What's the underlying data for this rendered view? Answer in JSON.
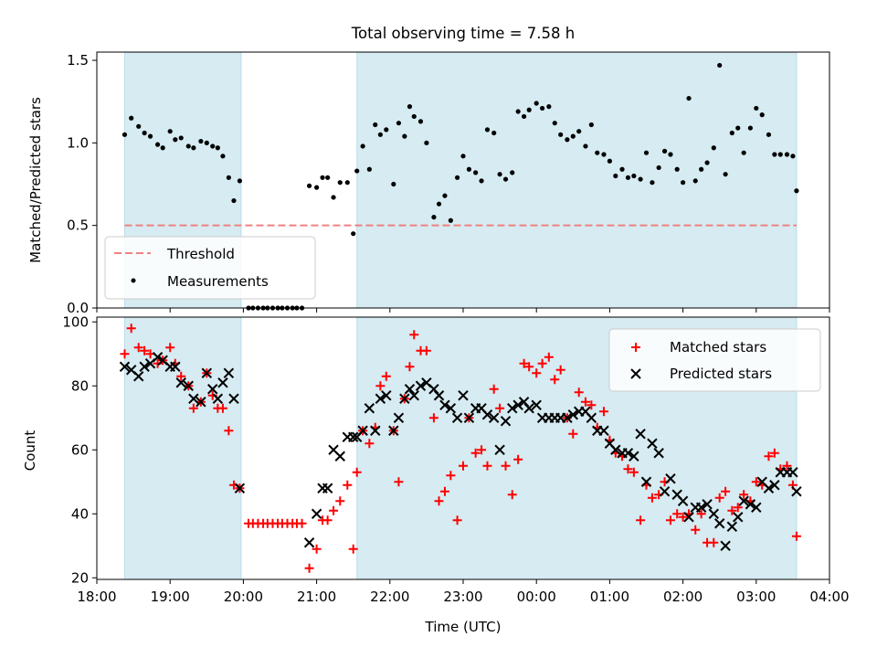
{
  "figure_title": "Total observing time = 7.58 h",
  "chart_data": [
    {
      "type": "scatter",
      "panel": "top",
      "ylabel": "Matched/Predicted stars",
      "ylim": [
        0,
        1.55
      ],
      "yticks": [
        0.0,
        0.5,
        1.0,
        1.5
      ],
      "ytick_labels": [
        "0.0",
        "0.5",
        "1.0",
        "1.5"
      ],
      "xlim_hours": [
        18,
        28
      ],
      "shaded_spans_hours": [
        [
          18.38,
          19.97
        ],
        [
          21.55,
          27.55
        ]
      ],
      "legend_position": "lower-left",
      "threshold": {
        "name": "Threshold",
        "value": 0.5,
        "color": "#f08080"
      },
      "measurements": {
        "name": "Measurements",
        "color": "#000000",
        "x": [
          18.38,
          18.47,
          18.57,
          18.65,
          18.73,
          18.83,
          18.9,
          19.0,
          19.07,
          19.15,
          19.25,
          19.32,
          19.42,
          19.5,
          19.58,
          19.65,
          19.72,
          19.8,
          19.87,
          19.95,
          20.07,
          20.13,
          20.2,
          20.27,
          20.33,
          20.4,
          20.47,
          20.53,
          20.6,
          20.67,
          20.73,
          20.8,
          20.9,
          21.0,
          21.08,
          21.15,
          21.23,
          21.32,
          21.42,
          21.5,
          21.55,
          21.63,
          21.72,
          21.8,
          21.87,
          21.95,
          22.05,
          22.12,
          22.2,
          22.27,
          22.33,
          22.42,
          22.5,
          22.6,
          22.67,
          22.75,
          22.83,
          22.92,
          23.0,
          23.08,
          23.17,
          23.25,
          23.33,
          23.42,
          23.5,
          23.58,
          23.67,
          23.75,
          23.83,
          23.9,
          24.0,
          24.08,
          24.17,
          24.25,
          24.33,
          24.42,
          24.5,
          24.58,
          24.67,
          24.75,
          24.83,
          24.92,
          25.0,
          25.08,
          25.17,
          25.25,
          25.33,
          25.42,
          25.5,
          25.58,
          25.67,
          25.75,
          25.83,
          25.92,
          26.0,
          26.08,
          26.17,
          26.25,
          26.33,
          26.42,
          26.5,
          26.58,
          26.67,
          26.75,
          26.83,
          26.92,
          27.0,
          27.08,
          27.17,
          27.25,
          27.33,
          27.42,
          27.5,
          27.55
        ],
        "y": [
          1.05,
          1.15,
          1.1,
          1.06,
          1.04,
          0.99,
          0.97,
          1.07,
          1.02,
          1.03,
          0.98,
          0.97,
          1.01,
          1.0,
          0.98,
          0.97,
          0.92,
          0.79,
          0.65,
          0.77,
          0.0,
          0.0,
          0.0,
          0.0,
          0.0,
          0.0,
          0.0,
          0.0,
          0.0,
          0.0,
          0.0,
          0.0,
          0.74,
          0.73,
          0.79,
          0.79,
          0.67,
          0.76,
          0.76,
          0.45,
          0.83,
          0.98,
          0.84,
          1.11,
          1.05,
          1.08,
          0.75,
          1.12,
          1.04,
          1.22,
          1.16,
          1.13,
          1.0,
          0.55,
          0.63,
          0.68,
          0.53,
          0.79,
          0.92,
          0.84,
          0.82,
          0.77,
          1.08,
          1.06,
          0.81,
          0.78,
          0.82,
          1.19,
          1.16,
          1.2,
          1.24,
          1.21,
          1.22,
          1.12,
          1.05,
          1.02,
          1.04,
          1.07,
          0.98,
          1.11,
          0.94,
          0.93,
          0.89,
          0.8,
          0.84,
          0.79,
          0.8,
          0.78,
          0.94,
          0.76,
          0.85,
          0.95,
          0.93,
          0.84,
          0.76,
          1.27,
          0.77,
          0.84,
          0.88,
          0.97,
          1.47,
          0.81,
          1.06,
          1.09,
          0.94,
          1.09,
          1.21,
          1.17,
          1.05,
          0.93,
          0.93,
          0.93,
          0.92,
          0.71
        ]
      }
    },
    {
      "type": "scatter",
      "panel": "bottom",
      "xlabel": "Time (UTC)",
      "ylabel": "Count",
      "ylim": [
        19.5,
        101.5
      ],
      "yticks": [
        20,
        40,
        60,
        80,
        100
      ],
      "ytick_labels": [
        "20",
        "40",
        "60",
        "80",
        "100"
      ],
      "xlim_hours": [
        18,
        28
      ],
      "xticks_hours": [
        18,
        19,
        20,
        21,
        22,
        23,
        24,
        25,
        26,
        27,
        28
      ],
      "xtick_labels": [
        "18:00",
        "19:00",
        "20:00",
        "21:00",
        "22:00",
        "23:00",
        "00:00",
        "01:00",
        "02:00",
        "03:00",
        "04:00"
      ],
      "shaded_spans_hours": [
        [
          18.38,
          19.97
        ],
        [
          21.55,
          27.55
        ]
      ],
      "legend_position": "top-right",
      "series": [
        {
          "name": "Matched stars",
          "marker": "plus",
          "color": "#ff0000",
          "x": [
            18.38,
            18.47,
            18.57,
            18.65,
            18.73,
            18.83,
            18.9,
            19.0,
            19.07,
            19.15,
            19.25,
            19.32,
            19.42,
            19.5,
            19.58,
            19.65,
            19.72,
            19.8,
            19.87,
            19.95,
            20.07,
            20.13,
            20.2,
            20.27,
            20.33,
            20.4,
            20.47,
            20.53,
            20.6,
            20.67,
            20.73,
            20.8,
            20.9,
            21.0,
            21.08,
            21.15,
            21.23,
            21.32,
            21.42,
            21.5,
            21.55,
            21.63,
            21.72,
            21.8,
            21.87,
            21.95,
            22.05,
            22.12,
            22.2,
            22.27,
            22.33,
            22.42,
            22.5,
            22.6,
            22.67,
            22.75,
            22.83,
            22.92,
            23.0,
            23.08,
            23.17,
            23.25,
            23.33,
            23.42,
            23.5,
            23.58,
            23.67,
            23.75,
            23.83,
            23.9,
            24.0,
            24.08,
            24.17,
            24.25,
            24.33,
            24.42,
            24.5,
            24.58,
            24.67,
            24.75,
            24.83,
            24.92,
            25.0,
            25.08,
            25.17,
            25.25,
            25.33,
            25.42,
            25.5,
            25.58,
            25.67,
            25.75,
            25.83,
            25.92,
            26.0,
            26.08,
            26.17,
            26.25,
            26.33,
            26.42,
            26.5,
            26.58,
            26.67,
            26.75,
            26.83,
            26.92,
            27.0,
            27.08,
            27.17,
            27.25,
            27.33,
            27.42,
            27.5,
            27.55
          ],
          "y": [
            90,
            98,
            92,
            91,
            90,
            87,
            88,
            92,
            87,
            83,
            80,
            73,
            75,
            84,
            77,
            73,
            73,
            66,
            49,
            48,
            37,
            37,
            37,
            37,
            37,
            37,
            37,
            37,
            37,
            37,
            37,
            37,
            23,
            29,
            38,
            38,
            41,
            44,
            49,
            29,
            53,
            66,
            62,
            67,
            80,
            83,
            66,
            50,
            76,
            86,
            96,
            91,
            91,
            70,
            44,
            47,
            52,
            38,
            55,
            70,
            59,
            60,
            55,
            79,
            73,
            55,
            46,
            57,
            87,
            86,
            84,
            87,
            89,
            82,
            85,
            70,
            65,
            78,
            75,
            74,
            67,
            72,
            63,
            59,
            58,
            54,
            53,
            38,
            49,
            45,
            46,
            50,
            38,
            40,
            39,
            40,
            35,
            40,
            31,
            31,
            45,
            47,
            41,
            42,
            46,
            44,
            50,
            49,
            58,
            59,
            54,
            55,
            49,
            33
          ]
        },
        {
          "name": "Predicted stars",
          "marker": "x",
          "color": "#000000",
          "x": [
            18.38,
            18.47,
            18.57,
            18.65,
            18.73,
            18.83,
            18.9,
            19.0,
            19.07,
            19.15,
            19.25,
            19.32,
            19.42,
            19.5,
            19.58,
            19.65,
            19.72,
            19.8,
            19.87,
            19.95,
            20.9,
            21.0,
            21.08,
            21.15,
            21.23,
            21.32,
            21.42,
            21.5,
            21.55,
            21.63,
            21.72,
            21.8,
            21.87,
            21.95,
            22.05,
            22.12,
            22.2,
            22.27,
            22.33,
            22.42,
            22.5,
            22.6,
            22.67,
            22.75,
            22.83,
            22.92,
            23.0,
            23.08,
            23.17,
            23.25,
            23.33,
            23.42,
            23.5,
            23.58,
            23.67,
            23.75,
            23.83,
            23.9,
            24.0,
            24.08,
            24.17,
            24.25,
            24.33,
            24.42,
            24.5,
            24.58,
            24.67,
            24.75,
            24.83,
            24.92,
            25.0,
            25.08,
            25.17,
            25.25,
            25.33,
            25.42,
            25.5,
            25.58,
            25.67,
            25.75,
            25.83,
            25.92,
            26.0,
            26.08,
            26.17,
            26.25,
            26.33,
            26.42,
            26.5,
            26.58,
            26.67,
            26.75,
            26.83,
            26.92,
            27.0,
            27.08,
            27.17,
            27.25,
            27.33,
            27.42,
            27.5,
            27.55
          ],
          "y": [
            86,
            85,
            83,
            86,
            87,
            89,
            88,
            86,
            86,
            81,
            80,
            76,
            75,
            84,
            79,
            76,
            81,
            84,
            76,
            48,
            31,
            40,
            48,
            48,
            60,
            58,
            64,
            64,
            64,
            66,
            73,
            66,
            76,
            77,
            66,
            70,
            76,
            79,
            77,
            80,
            81,
            79,
            77,
            74,
            73,
            70,
            77,
            70,
            73,
            73,
            71,
            70,
            60,
            69,
            73,
            74,
            75,
            73,
            74,
            70,
            70,
            70,
            70,
            70,
            71,
            72,
            72,
            70,
            66,
            66,
            62,
            60,
            59,
            59,
            58,
            65,
            50,
            62,
            59,
            47,
            51,
            46,
            44,
            39,
            42,
            42,
            43,
            40,
            37,
            30,
            36,
            39,
            44,
            43,
            42,
            50,
            48,
            49,
            53,
            53,
            53,
            47
          ]
        }
      ]
    }
  ]
}
